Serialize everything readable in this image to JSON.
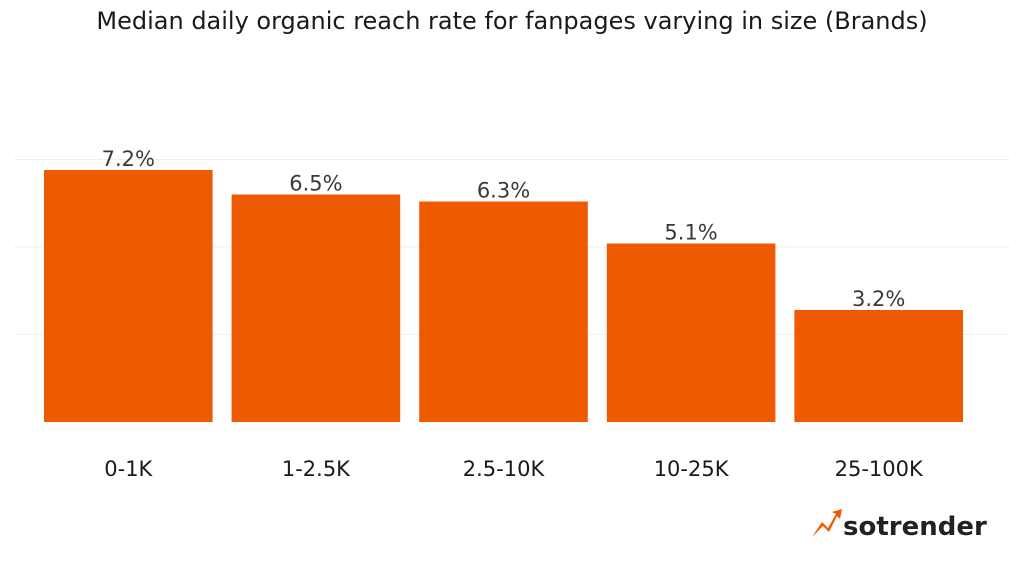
{
  "chart_data": {
    "type": "bar",
    "title": "Median daily organic reach rate for fanpages varying in size (Brands)",
    "categories": [
      "0-1K",
      "1-2.5K",
      "2.5-10K",
      "10-25K",
      "25-100K"
    ],
    "values": [
      7.2,
      6.5,
      6.3,
      5.1,
      3.2
    ],
    "value_labels": [
      "7.2%",
      "6.5%",
      "6.3%",
      "5.1%",
      "3.2%"
    ],
    "xlabel": "",
    "ylabel": "",
    "ylim": [
      0,
      10
    ],
    "grid": true,
    "bar_color": "#EE5A00"
  },
  "branding": {
    "logo_text": "sotrender",
    "accent_color": "#EE5A00"
  }
}
